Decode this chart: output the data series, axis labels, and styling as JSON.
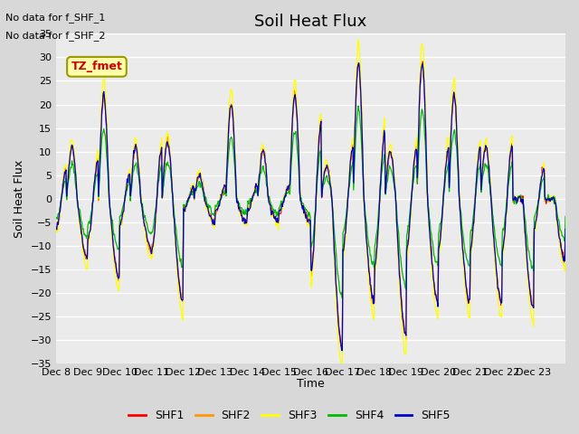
{
  "title": "Soil Heat Flux",
  "ylabel": "Soil Heat Flux",
  "xlabel": "Time",
  "ylim": [
    -35,
    35
  ],
  "yticks": [
    -35,
    -30,
    -25,
    -20,
    -15,
    -10,
    -5,
    0,
    5,
    10,
    15,
    20,
    25,
    30,
    35
  ],
  "xtick_positions": [
    0,
    1,
    2,
    3,
    4,
    5,
    6,
    7,
    8,
    9,
    10,
    11,
    12,
    13,
    14,
    15,
    16
  ],
  "xtick_labels": [
    "Dec 8",
    "Dec 9",
    "Dec 10",
    "Dec 11",
    "Dec 12",
    "Dec 13",
    "Dec 14",
    "Dec 15",
    "Dec 16",
    "Dec 17",
    "Dec 18",
    "Dec 19",
    "Dec 20",
    "Dec 21",
    "Dec 22",
    "Dec 23",
    ""
  ],
  "note_line1": "No data for f_SHF_1",
  "note_line2": "No data for f_SHF_2",
  "legend_label": "TZ_fmet",
  "series_colors": {
    "SHF1": "#ff0000",
    "SHF2": "#ff9900",
    "SHF3": "#ffff00",
    "SHF4": "#00bb00",
    "SHF5": "#0000cc"
  },
  "background_color": "#d8d8d8",
  "plot_bg_color": "#ebebeb",
  "grid_color": "#ffffff",
  "title_fontsize": 13,
  "axis_label_fontsize": 9,
  "tick_fontsize": 8,
  "n_days": 16
}
